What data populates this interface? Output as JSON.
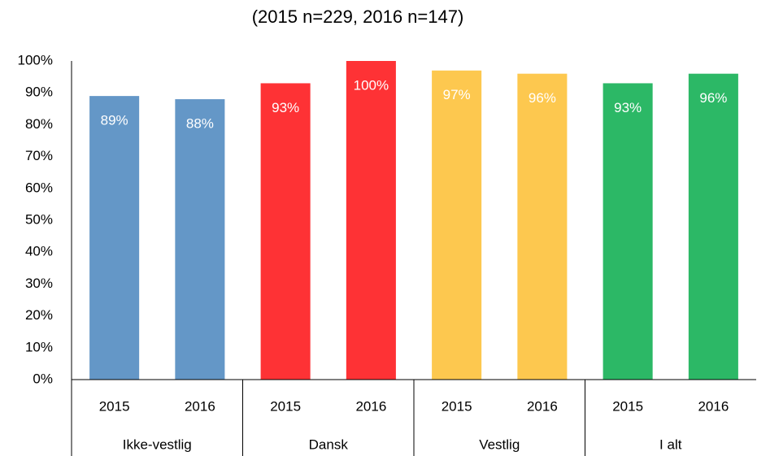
{
  "chart_data": {
    "type": "bar",
    "title": "(2015 n=229, 2016 n=147)",
    "groups": [
      {
        "name": "Ikke-vestlig",
        "color": "#6497c7",
        "categories": [
          "2015",
          "2016"
        ],
        "values": [
          89,
          88
        ],
        "value_labels": [
          "89%",
          "88%"
        ]
      },
      {
        "name": "Dansk",
        "color": "#fe3235",
        "categories": [
          "2015",
          "2016"
        ],
        "values": [
          93,
          100
        ],
        "value_labels": [
          "93%",
          "100%"
        ]
      },
      {
        "name": "Vestlig",
        "color": "#fdc84f",
        "categories": [
          "2015",
          "2016"
        ],
        "values": [
          97,
          96
        ],
        "value_labels": [
          "97%",
          "96%"
        ]
      },
      {
        "name": "I alt",
        "color": "#2cb866",
        "categories": [
          "2015",
          "2016"
        ],
        "values": [
          93,
          96
        ],
        "value_labels": [
          "93%",
          "96%"
        ]
      }
    ],
    "ylim": [
      0,
      100
    ],
    "yticks": [
      {
        "value": 0,
        "label": "0%"
      },
      {
        "value": 10,
        "label": "10%"
      },
      {
        "value": 20,
        "label": "20%"
      },
      {
        "value": 30,
        "label": "30%"
      },
      {
        "value": 40,
        "label": "40%"
      },
      {
        "value": 50,
        "label": "50%"
      },
      {
        "value": 60,
        "label": "60%"
      },
      {
        "value": 70,
        "label": "70%"
      },
      {
        "value": 80,
        "label": "80%"
      },
      {
        "value": 90,
        "label": "90%"
      },
      {
        "value": 100,
        "label": "100%"
      }
    ],
    "grid": false
  }
}
